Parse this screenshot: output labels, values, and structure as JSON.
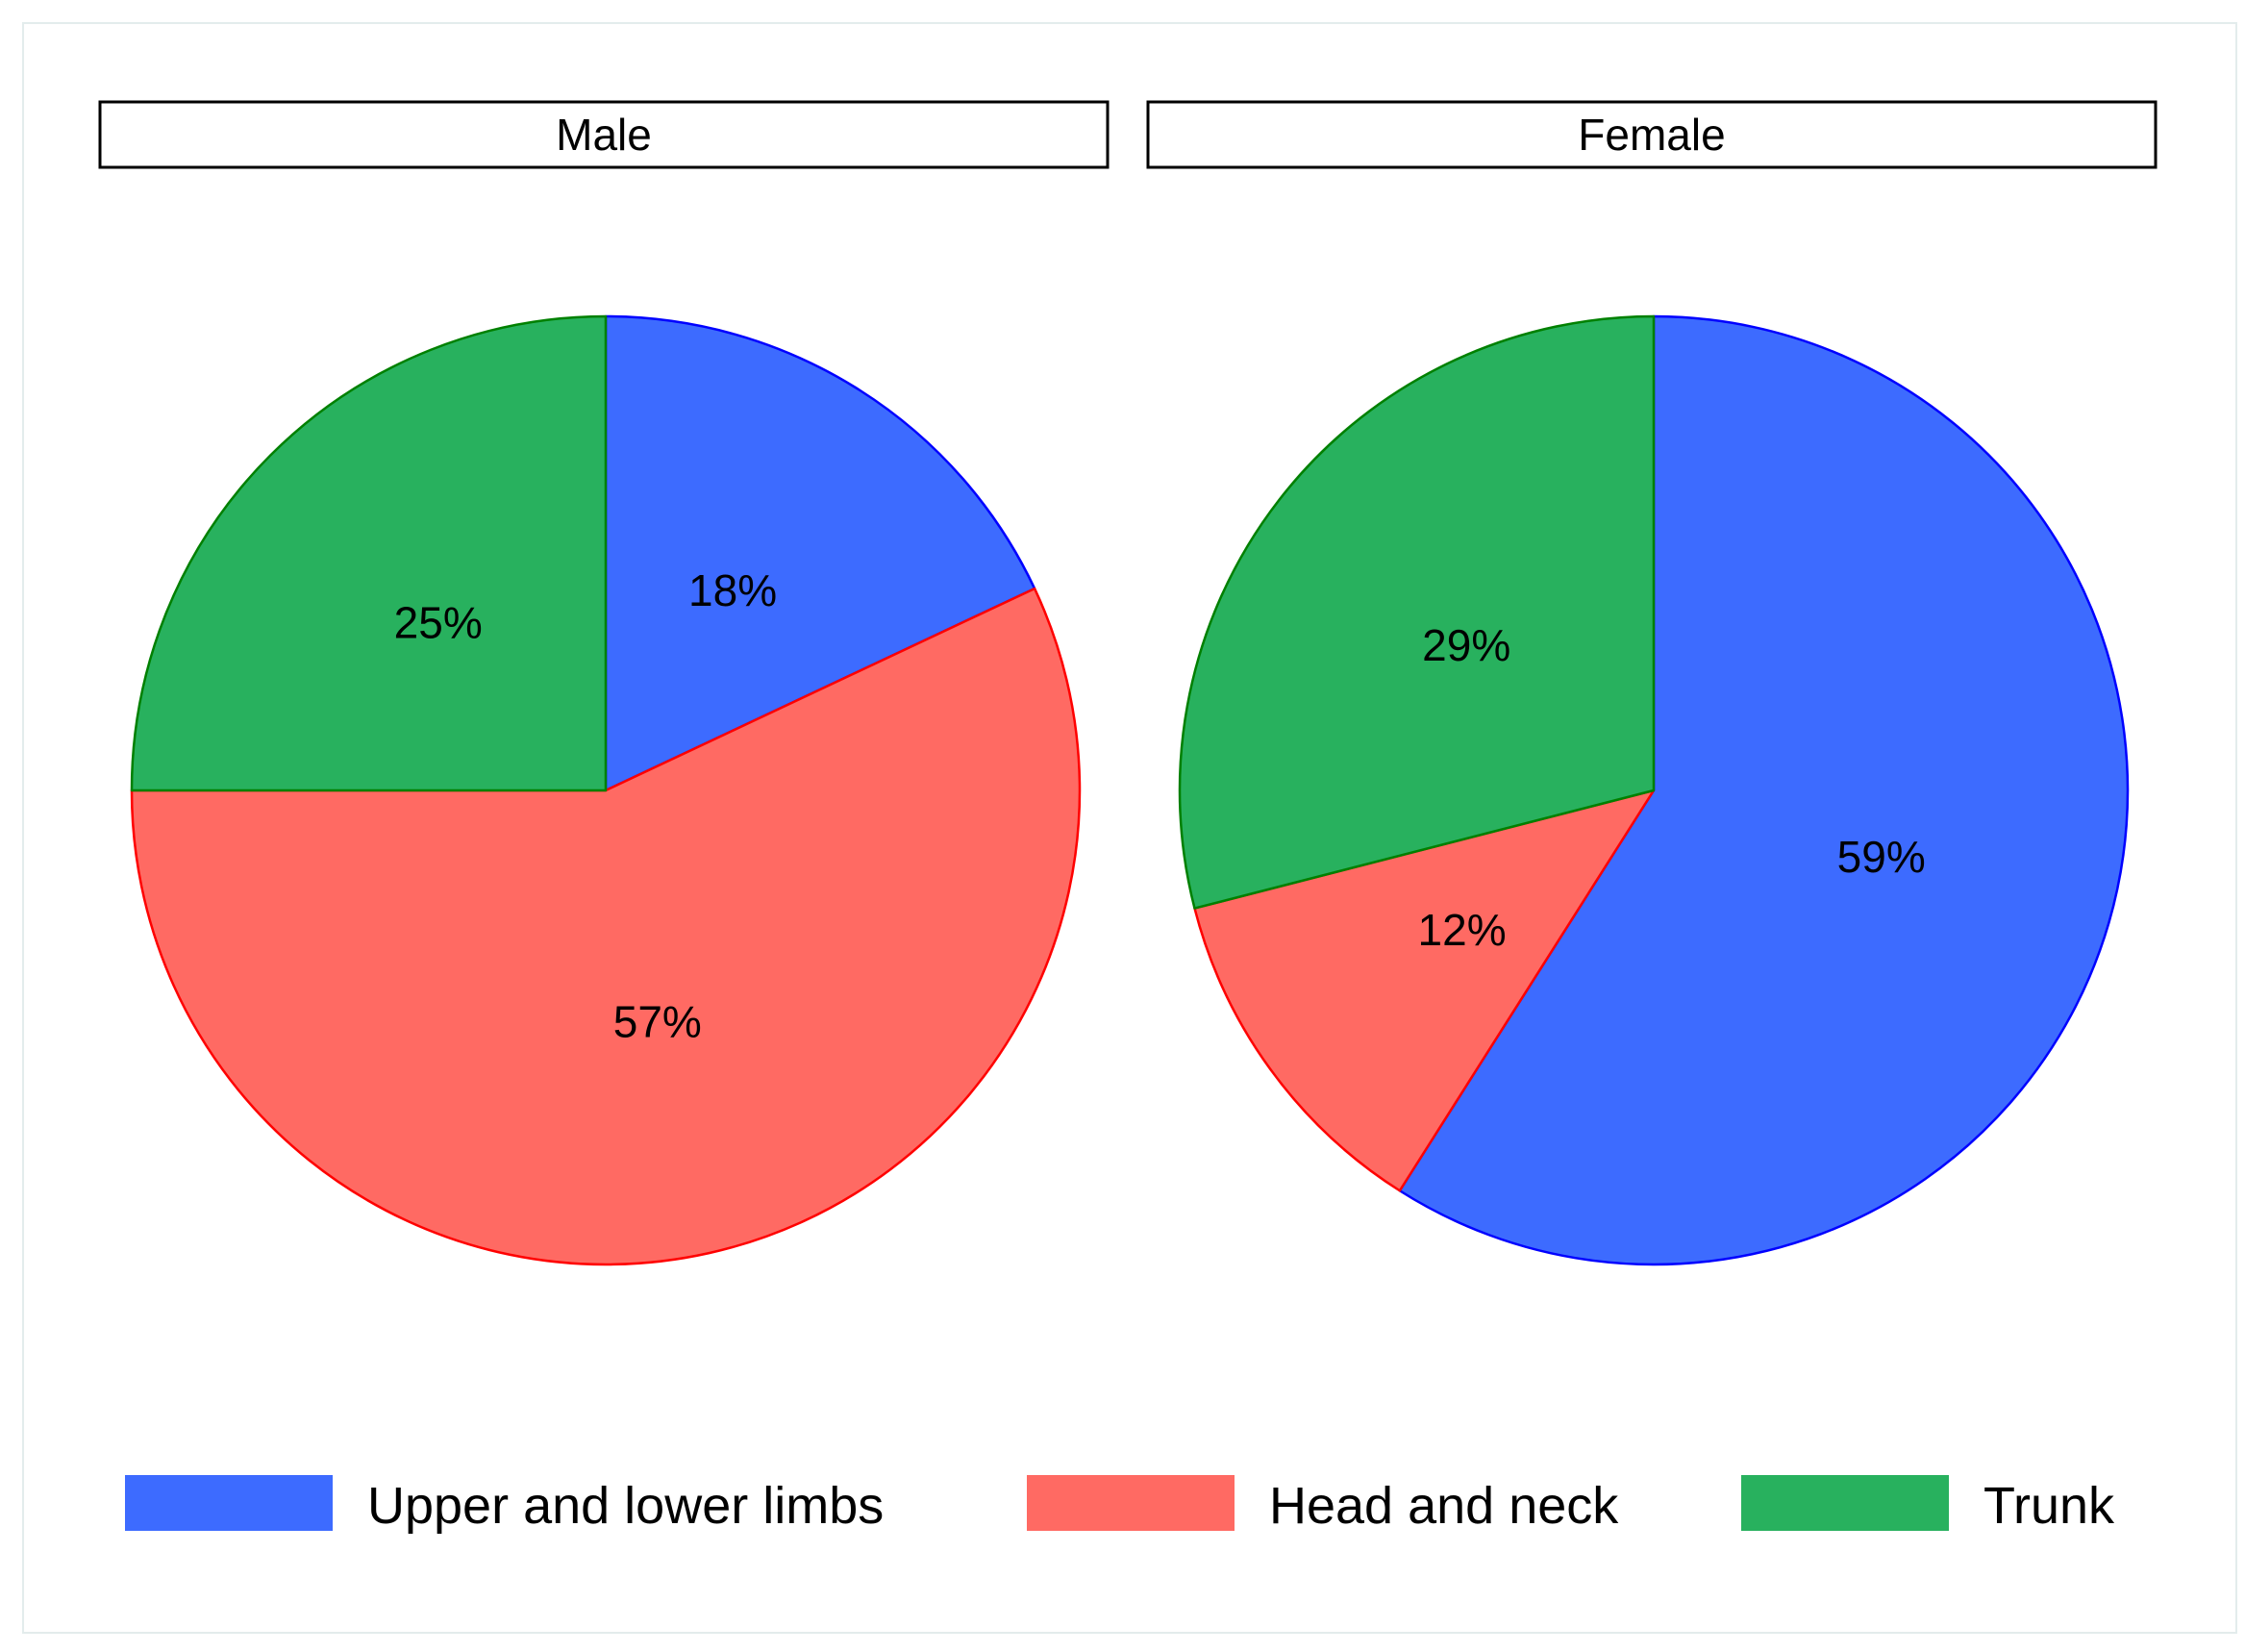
{
  "chart_data": [
    {
      "type": "pie",
      "title": "Male",
      "categories": [
        "Upper and lower limbs",
        "Head and neck",
        "Trunk"
      ],
      "values": [
        18,
        57,
        25
      ],
      "labels": [
        "18%",
        "57%",
        "25%"
      ],
      "start_angle": "12 o'clock",
      "direction": "clockwise"
    },
    {
      "type": "pie",
      "title": "Female",
      "categories": [
        "Upper and lower limbs",
        "Head and neck",
        "Trunk"
      ],
      "values": [
        59,
        12,
        29
      ],
      "labels": [
        "59%",
        "12%",
        "29%"
      ],
      "start_angle": "12 o'clock",
      "direction": "clockwise"
    }
  ],
  "legend": {
    "placement": "bottom",
    "items": [
      {
        "label": "Upper and lower limbs",
        "fill": "#3d6bff",
        "stroke": "#0000ff"
      },
      {
        "label": "Head and neck",
        "fill": "#ff6a63",
        "stroke": "#ff0000"
      },
      {
        "label": "Trunk",
        "fill": "#28b15e",
        "stroke": "#008000"
      }
    ]
  },
  "colors": {
    "panel_border": "#000000",
    "frame_border": "#e3ecec",
    "text": "#000000"
  }
}
